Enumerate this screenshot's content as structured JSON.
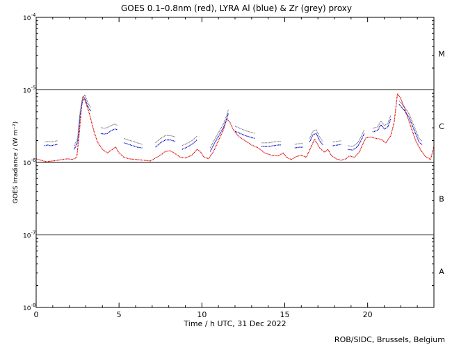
{
  "chart_data": {
    "type": "line",
    "title": "GOES 0.1–0.8nm (red), LYRA Al (blue) & Zr (grey) proxy",
    "xlabel": "Time / h UTC, 31 Dec 2022",
    "ylabel": "GOES Irradiance / (W m⁻²)",
    "xlim": [
      0,
      24
    ],
    "ylim_log10": [
      -8,
      -4
    ],
    "yscale": "log",
    "x_ticks": [
      0,
      5,
      10,
      15,
      20
    ],
    "y_ticks": [
      {
        "value": -4,
        "base": "10",
        "exp": "-4"
      },
      {
        "value": -5,
        "base": "10",
        "exp": "-5"
      },
      {
        "value": -6,
        "base": "10",
        "exp": "-6"
      },
      {
        "value": -7,
        "base": "10",
        "exp": "-7"
      },
      {
        "value": -8,
        "base": "10",
        "exp": "-8"
      }
    ],
    "flare_classes": [
      {
        "label": "M",
        "y": -4.5
      },
      {
        "label": "C",
        "y": -5.5
      },
      {
        "label": "B",
        "y": -6.5
      },
      {
        "label": "A",
        "y": -7.5
      }
    ],
    "reference_lines": [
      -5,
      -6,
      -7
    ],
    "series": [
      {
        "color": "#e00000",
        "segments": [
          [
            [
              0.0,
              -5.95
            ],
            [
              0.3,
              -5.97
            ],
            [
              0.6,
              -5.99
            ],
            [
              1.0,
              -5.98
            ],
            [
              1.3,
              -5.97
            ],
            [
              1.6,
              -5.96
            ],
            [
              1.9,
              -5.95
            ],
            [
              2.2,
              -5.96
            ],
            [
              2.45,
              -5.93
            ],
            [
              2.6,
              -5.6
            ],
            [
              2.75,
              -5.2
            ],
            [
              2.85,
              -5.08
            ],
            [
              3.0,
              -5.18
            ],
            [
              3.2,
              -5.32
            ],
            [
              3.35,
              -5.45
            ],
            [
              3.5,
              -5.58
            ],
            [
              3.7,
              -5.72
            ],
            [
              4.0,
              -5.82
            ],
            [
              4.3,
              -5.87
            ],
            [
              4.6,
              -5.82
            ],
            [
              4.8,
              -5.79
            ],
            [
              5.0,
              -5.87
            ],
            [
              5.3,
              -5.93
            ],
            [
              5.6,
              -5.95
            ],
            [
              6.0,
              -5.96
            ],
            [
              6.5,
              -5.97
            ],
            [
              6.9,
              -5.98
            ],
            [
              7.2,
              -5.94
            ],
            [
              7.5,
              -5.9
            ],
            [
              7.8,
              -5.85
            ],
            [
              8.1,
              -5.84
            ],
            [
              8.4,
              -5.88
            ],
            [
              8.7,
              -5.93
            ],
            [
              9.0,
              -5.94
            ],
            [
              9.4,
              -5.9
            ],
            [
              9.7,
              -5.82
            ],
            [
              9.9,
              -5.85
            ],
            [
              10.1,
              -5.92
            ],
            [
              10.4,
              -5.95
            ],
            [
              10.7,
              -5.85
            ],
            [
              11.0,
              -5.7
            ],
            [
              11.3,
              -5.55
            ],
            [
              11.5,
              -5.4
            ],
            [
              11.7,
              -5.45
            ],
            [
              11.9,
              -5.55
            ],
            [
              12.2,
              -5.64
            ],
            [
              12.6,
              -5.7
            ],
            [
              13.0,
              -5.76
            ],
            [
              13.4,
              -5.8
            ],
            [
              13.8,
              -5.87
            ],
            [
              14.2,
              -5.9
            ],
            [
              14.6,
              -5.91
            ],
            [
              14.9,
              -5.87
            ],
            [
              15.1,
              -5.93
            ],
            [
              15.4,
              -5.96
            ],
            [
              15.7,
              -5.92
            ],
            [
              16.0,
              -5.9
            ],
            [
              16.3,
              -5.93
            ],
            [
              16.6,
              -5.78
            ],
            [
              16.8,
              -5.68
            ],
            [
              17.1,
              -5.8
            ],
            [
              17.4,
              -5.86
            ],
            [
              17.6,
              -5.82
            ],
            [
              17.8,
              -5.9
            ],
            [
              18.1,
              -5.95
            ],
            [
              18.4,
              -5.97
            ],
            [
              18.7,
              -5.95
            ],
            [
              18.9,
              -5.91
            ],
            [
              19.2,
              -5.93
            ],
            [
              19.5,
              -5.86
            ],
            [
              19.7,
              -5.75
            ],
            [
              19.9,
              -5.66
            ],
            [
              20.2,
              -5.65
            ],
            [
              20.5,
              -5.67
            ],
            [
              20.8,
              -5.68
            ],
            [
              21.1,
              -5.73
            ],
            [
              21.4,
              -5.63
            ],
            [
              21.6,
              -5.45
            ],
            [
              21.8,
              -5.05
            ],
            [
              22.0,
              -5.12
            ],
            [
              22.3,
              -5.3
            ],
            [
              22.6,
              -5.5
            ],
            [
              22.9,
              -5.7
            ],
            [
              23.2,
              -5.83
            ],
            [
              23.5,
              -5.92
            ],
            [
              23.8,
              -5.96
            ],
            [
              24.0,
              -5.78
            ]
          ]
        ]
      },
      {
        "color": "#0000cc",
        "segments": [
          [
            [
              0.5,
              -5.77
            ],
            [
              0.7,
              -5.76
            ],
            [
              0.9,
              -5.77
            ],
            [
              1.1,
              -5.76
            ],
            [
              1.3,
              -5.75
            ]
          ],
          [
            [
              2.3,
              -5.82
            ],
            [
              2.5,
              -5.72
            ],
            [
              2.65,
              -5.35
            ],
            [
              2.8,
              -5.15
            ],
            [
              2.95,
              -5.12
            ],
            [
              3.1,
              -5.22
            ],
            [
              3.3,
              -5.3
            ]
          ],
          [
            [
              3.9,
              -5.6
            ],
            [
              4.1,
              -5.61
            ],
            [
              4.3,
              -5.6
            ],
            [
              4.55,
              -5.56
            ],
            [
              4.75,
              -5.54
            ],
            [
              4.9,
              -5.55
            ]
          ],
          [
            [
              5.3,
              -5.73
            ],
            [
              5.7,
              -5.76
            ],
            [
              6.1,
              -5.79
            ],
            [
              6.4,
              -5.8
            ]
          ],
          [
            [
              7.2,
              -5.79
            ],
            [
              7.5,
              -5.73
            ],
            [
              7.8,
              -5.69
            ],
            [
              8.1,
              -5.69
            ],
            [
              8.4,
              -5.71
            ]
          ],
          [
            [
              8.8,
              -5.82
            ],
            [
              9.1,
              -5.79
            ],
            [
              9.4,
              -5.75
            ],
            [
              9.7,
              -5.69
            ]
          ],
          [
            [
              10.5,
              -5.85
            ],
            [
              10.8,
              -5.72
            ],
            [
              11.1,
              -5.6
            ],
            [
              11.3,
              -5.52
            ],
            [
              11.5,
              -5.4
            ],
            [
              11.6,
              -5.32
            ]
          ],
          [
            [
              12.0,
              -5.57
            ],
            [
              12.3,
              -5.6
            ],
            [
              12.6,
              -5.63
            ],
            [
              12.9,
              -5.65
            ],
            [
              13.2,
              -5.67
            ]
          ],
          [
            [
              13.6,
              -5.78
            ],
            [
              14.0,
              -5.78
            ],
            [
              14.3,
              -5.77
            ],
            [
              14.6,
              -5.76
            ],
            [
              14.8,
              -5.76
            ]
          ],
          [
            [
              15.6,
              -5.8
            ],
            [
              15.9,
              -5.79
            ],
            [
              16.1,
              -5.79
            ]
          ],
          [
            [
              16.5,
              -5.72
            ],
            [
              16.7,
              -5.62
            ],
            [
              16.9,
              -5.6
            ],
            [
              17.1,
              -5.7
            ],
            [
              17.3,
              -5.76
            ]
          ],
          [
            [
              17.9,
              -5.77
            ],
            [
              18.2,
              -5.76
            ],
            [
              18.4,
              -5.75
            ]
          ],
          [
            [
              18.8,
              -5.82
            ],
            [
              19.1,
              -5.83
            ],
            [
              19.4,
              -5.78
            ],
            [
              19.6,
              -5.7
            ],
            [
              19.8,
              -5.6
            ]
          ],
          [
            [
              20.3,
              -5.58
            ],
            [
              20.6,
              -5.56
            ],
            [
              20.8,
              -5.48
            ],
            [
              21.0,
              -5.54
            ],
            [
              21.2,
              -5.52
            ],
            [
              21.4,
              -5.4
            ]
          ],
          [
            [
              21.9,
              -5.2
            ],
            [
              22.2,
              -5.28
            ],
            [
              22.5,
              -5.38
            ],
            [
              22.8,
              -5.55
            ],
            [
              23.1,
              -5.72
            ],
            [
              23.3,
              -5.76
            ]
          ]
        ]
      },
      {
        "color": "#7a7a7a",
        "segments": [
          [
            [
              0.5,
              -5.72
            ],
            [
              0.7,
              -5.71
            ],
            [
              0.9,
              -5.72
            ],
            [
              1.1,
              -5.71
            ],
            [
              1.3,
              -5.7
            ]
          ],
          [
            [
              2.3,
              -5.77
            ],
            [
              2.5,
              -5.67
            ],
            [
              2.65,
              -5.3
            ],
            [
              2.8,
              -5.1
            ],
            [
              2.95,
              -5.07
            ],
            [
              3.1,
              -5.17
            ],
            [
              3.3,
              -5.25
            ]
          ],
          [
            [
              3.9,
              -5.52
            ],
            [
              4.1,
              -5.53
            ],
            [
              4.3,
              -5.52
            ],
            [
              4.55,
              -5.49
            ],
            [
              4.75,
              -5.47
            ],
            [
              4.9,
              -5.49
            ]
          ],
          [
            [
              5.3,
              -5.67
            ],
            [
              5.7,
              -5.7
            ],
            [
              6.1,
              -5.73
            ],
            [
              6.4,
              -5.75
            ]
          ],
          [
            [
              7.2,
              -5.73
            ],
            [
              7.5,
              -5.67
            ],
            [
              7.8,
              -5.63
            ],
            [
              8.1,
              -5.63
            ],
            [
              8.4,
              -5.65
            ]
          ],
          [
            [
              8.8,
              -5.77
            ],
            [
              9.1,
              -5.74
            ],
            [
              9.4,
              -5.7
            ],
            [
              9.7,
              -5.64
            ]
          ],
          [
            [
              10.5,
              -5.8
            ],
            [
              10.8,
              -5.67
            ],
            [
              11.1,
              -5.55
            ],
            [
              11.3,
              -5.47
            ],
            [
              11.5,
              -5.35
            ],
            [
              11.6,
              -5.27
            ]
          ],
          [
            [
              12.0,
              -5.5
            ],
            [
              12.3,
              -5.53
            ],
            [
              12.6,
              -5.56
            ],
            [
              12.9,
              -5.58
            ],
            [
              13.2,
              -5.6
            ]
          ],
          [
            [
              13.6,
              -5.73
            ],
            [
              14.0,
              -5.73
            ],
            [
              14.3,
              -5.72
            ],
            [
              14.6,
              -5.71
            ],
            [
              14.8,
              -5.71
            ]
          ],
          [
            [
              15.6,
              -5.75
            ],
            [
              15.9,
              -5.74
            ],
            [
              16.1,
              -5.74
            ]
          ],
          [
            [
              16.5,
              -5.67
            ],
            [
              16.7,
              -5.57
            ],
            [
              16.9,
              -5.55
            ],
            [
              17.1,
              -5.65
            ],
            [
              17.3,
              -5.71
            ]
          ],
          [
            [
              17.9,
              -5.72
            ],
            [
              18.2,
              -5.71
            ],
            [
              18.4,
              -5.7
            ]
          ],
          [
            [
              18.8,
              -5.77
            ],
            [
              19.1,
              -5.78
            ],
            [
              19.4,
              -5.73
            ],
            [
              19.6,
              -5.65
            ],
            [
              19.8,
              -5.55
            ]
          ],
          [
            [
              20.3,
              -5.53
            ],
            [
              20.6,
              -5.51
            ],
            [
              20.8,
              -5.43
            ],
            [
              21.0,
              -5.49
            ],
            [
              21.2,
              -5.47
            ],
            [
              21.4,
              -5.35
            ]
          ],
          [
            [
              21.9,
              -5.15
            ],
            [
              22.2,
              -5.23
            ],
            [
              22.5,
              -5.33
            ],
            [
              22.8,
              -5.5
            ],
            [
              23.1,
              -5.67
            ],
            [
              23.3,
              -5.71
            ]
          ]
        ]
      }
    ]
  },
  "credit": "ROB/SIDC, Brussels, Belgium"
}
